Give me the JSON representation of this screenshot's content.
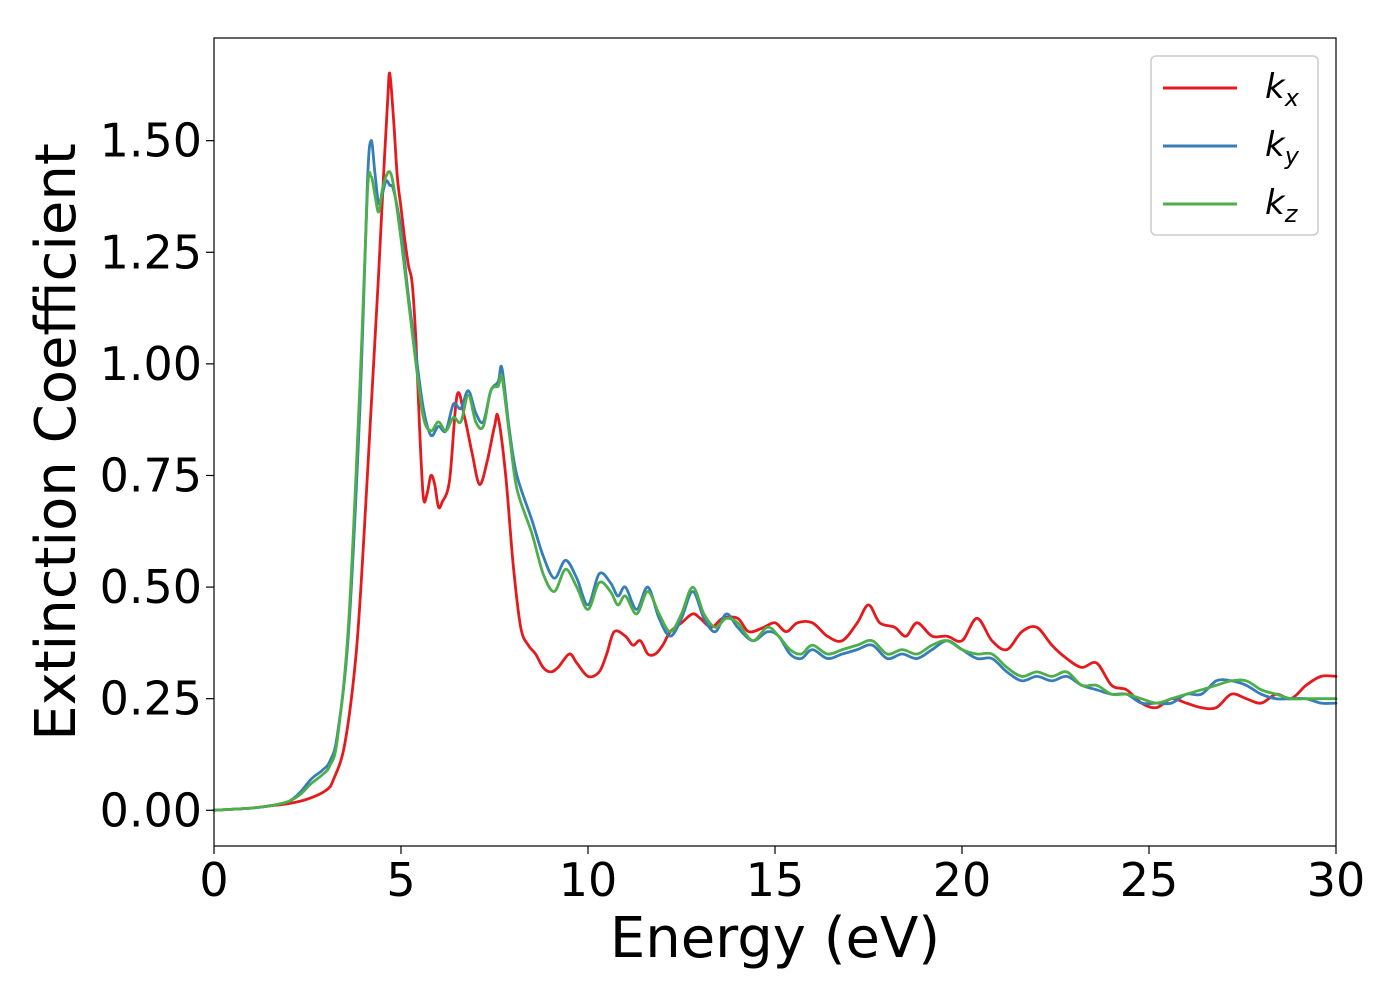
{
  "chart_data": {
    "type": "line",
    "title": "",
    "xlabel": "Energy (eV)",
    "ylabel": "Extinction Coefficient",
    "xlim": [
      0,
      30
    ],
    "ylim": [
      -0.08,
      1.73
    ],
    "xticks": [
      0,
      5,
      10,
      15,
      20,
      25,
      30
    ],
    "xtick_labels": [
      "0",
      "5",
      "10",
      "15",
      "20",
      "25",
      "30"
    ],
    "yticks": [
      0,
      0.25,
      0.5,
      0.75,
      1.0,
      1.25,
      1.5
    ],
    "ytick_labels": [
      "0.00",
      "0.25",
      "0.50",
      "0.75",
      "1.00",
      "1.25",
      "1.50"
    ],
    "grid": false,
    "legend_position": "top-right",
    "series": [
      {
        "name": "k",
        "subscript": "x",
        "color": "#e41a1c",
        "points": [
          [
            0,
            0
          ],
          [
            1,
            0.005
          ],
          [
            1.5,
            0.01
          ],
          [
            2,
            0.015
          ],
          [
            2.5,
            0.025
          ],
          [
            3,
            0.045
          ],
          [
            3.2,
            0.07
          ],
          [
            3.5,
            0.15
          ],
          [
            3.8,
            0.35
          ],
          [
            4.0,
            0.6
          ],
          [
            4.2,
            0.9
          ],
          [
            4.4,
            1.2
          ],
          [
            4.55,
            1.45
          ],
          [
            4.65,
            1.6
          ],
          [
            4.7,
            1.65
          ],
          [
            4.8,
            1.55
          ],
          [
            4.9,
            1.42
          ],
          [
            5.0,
            1.35
          ],
          [
            5.1,
            1.28
          ],
          [
            5.2,
            1.22
          ],
          [
            5.3,
            1.18
          ],
          [
            5.4,
            1.05
          ],
          [
            5.5,
            0.85
          ],
          [
            5.6,
            0.7
          ],
          [
            5.7,
            0.71
          ],
          [
            5.8,
            0.75
          ],
          [
            5.9,
            0.73
          ],
          [
            6.0,
            0.68
          ],
          [
            6.1,
            0.69
          ],
          [
            6.3,
            0.74
          ],
          [
            6.5,
            0.93
          ],
          [
            6.7,
            0.88
          ],
          [
            6.9,
            0.8
          ],
          [
            7.1,
            0.73
          ],
          [
            7.3,
            0.78
          ],
          [
            7.5,
            0.86
          ],
          [
            7.6,
            0.88
          ],
          [
            7.8,
            0.75
          ],
          [
            8.0,
            0.55
          ],
          [
            8.2,
            0.41
          ],
          [
            8.4,
            0.37
          ],
          [
            8.6,
            0.35
          ],
          [
            8.8,
            0.32
          ],
          [
            9.0,
            0.31
          ],
          [
            9.2,
            0.32
          ],
          [
            9.5,
            0.35
          ],
          [
            9.7,
            0.33
          ],
          [
            10.0,
            0.3
          ],
          [
            10.3,
            0.31
          ],
          [
            10.5,
            0.35
          ],
          [
            10.7,
            0.4
          ],
          [
            11.0,
            0.39
          ],
          [
            11.2,
            0.37
          ],
          [
            11.4,
            0.38
          ],
          [
            11.6,
            0.35
          ],
          [
            11.8,
            0.35
          ],
          [
            12.0,
            0.37
          ],
          [
            12.2,
            0.4
          ],
          [
            12.5,
            0.42
          ],
          [
            12.8,
            0.44
          ],
          [
            13.0,
            0.43
          ],
          [
            13.3,
            0.41
          ],
          [
            13.6,
            0.43
          ],
          [
            14.0,
            0.43
          ],
          [
            14.3,
            0.4
          ],
          [
            14.7,
            0.41
          ],
          [
            15.0,
            0.42
          ],
          [
            15.3,
            0.4
          ],
          [
            15.6,
            0.42
          ],
          [
            16.0,
            0.42
          ],
          [
            16.4,
            0.39
          ],
          [
            16.8,
            0.38
          ],
          [
            17.2,
            0.42
          ],
          [
            17.5,
            0.46
          ],
          [
            17.8,
            0.42
          ],
          [
            18.2,
            0.41
          ],
          [
            18.5,
            0.39
          ],
          [
            18.8,
            0.42
          ],
          [
            19.2,
            0.39
          ],
          [
            19.6,
            0.39
          ],
          [
            20.0,
            0.38
          ],
          [
            20.4,
            0.43
          ],
          [
            20.8,
            0.38
          ],
          [
            21.2,
            0.36
          ],
          [
            21.6,
            0.4
          ],
          [
            22.0,
            0.41
          ],
          [
            22.4,
            0.37
          ],
          [
            22.8,
            0.34
          ],
          [
            23.2,
            0.32
          ],
          [
            23.6,
            0.33
          ],
          [
            24.0,
            0.28
          ],
          [
            24.4,
            0.27
          ],
          [
            24.8,
            0.24
          ],
          [
            25.2,
            0.23
          ],
          [
            25.6,
            0.25
          ],
          [
            26.0,
            0.24
          ],
          [
            26.4,
            0.23
          ],
          [
            26.8,
            0.23
          ],
          [
            27.2,
            0.26
          ],
          [
            27.6,
            0.25
          ],
          [
            28.0,
            0.24
          ],
          [
            28.4,
            0.26
          ],
          [
            28.8,
            0.25
          ],
          [
            29.2,
            0.28
          ],
          [
            29.6,
            0.3
          ],
          [
            30.0,
            0.3
          ]
        ]
      },
      {
        "name": "k",
        "subscript": "y",
        "color": "#377eb8",
        "points": [
          [
            0,
            0
          ],
          [
            1,
            0.005
          ],
          [
            1.5,
            0.01
          ],
          [
            2,
            0.02
          ],
          [
            2.3,
            0.04
          ],
          [
            2.6,
            0.07
          ],
          [
            2.9,
            0.09
          ],
          [
            3.1,
            0.11
          ],
          [
            3.3,
            0.17
          ],
          [
            3.6,
            0.4
          ],
          [
            3.9,
            0.9
          ],
          [
            4.1,
            1.4
          ],
          [
            4.2,
            1.5
          ],
          [
            4.3,
            1.43
          ],
          [
            4.4,
            1.36
          ],
          [
            4.5,
            1.38
          ],
          [
            4.6,
            1.41
          ],
          [
            4.7,
            1.4
          ],
          [
            4.8,
            1.39
          ],
          [
            5.0,
            1.3
          ],
          [
            5.2,
            1.15
          ],
          [
            5.4,
            1.02
          ],
          [
            5.6,
            0.9
          ],
          [
            5.8,
            0.84
          ],
          [
            6.0,
            0.86
          ],
          [
            6.2,
            0.85
          ],
          [
            6.4,
            0.91
          ],
          [
            6.6,
            0.9
          ],
          [
            6.8,
            0.94
          ],
          [
            7.0,
            0.89
          ],
          [
            7.2,
            0.87
          ],
          [
            7.4,
            0.94
          ],
          [
            7.6,
            0.96
          ],
          [
            7.7,
            0.99
          ],
          [
            7.9,
            0.85
          ],
          [
            8.1,
            0.75
          ],
          [
            8.5,
            0.65
          ],
          [
            8.8,
            0.57
          ],
          [
            9.1,
            0.52
          ],
          [
            9.4,
            0.56
          ],
          [
            9.7,
            0.52
          ],
          [
            10.0,
            0.46
          ],
          [
            10.3,
            0.53
          ],
          [
            10.6,
            0.51
          ],
          [
            10.8,
            0.48
          ],
          [
            11.0,
            0.5
          ],
          [
            11.3,
            0.45
          ],
          [
            11.6,
            0.5
          ],
          [
            11.9,
            0.43
          ],
          [
            12.2,
            0.39
          ],
          [
            12.5,
            0.43
          ],
          [
            12.8,
            0.49
          ],
          [
            13.1,
            0.43
          ],
          [
            13.4,
            0.4
          ],
          [
            13.7,
            0.44
          ],
          [
            14.0,
            0.41
          ],
          [
            14.4,
            0.38
          ],
          [
            14.8,
            0.4
          ],
          [
            15.1,
            0.39
          ],
          [
            15.4,
            0.35
          ],
          [
            15.7,
            0.34
          ],
          [
            16.0,
            0.36
          ],
          [
            16.4,
            0.34
          ],
          [
            16.8,
            0.35
          ],
          [
            17.2,
            0.36
          ],
          [
            17.6,
            0.37
          ],
          [
            18.0,
            0.34
          ],
          [
            18.4,
            0.35
          ],
          [
            18.8,
            0.34
          ],
          [
            19.2,
            0.36
          ],
          [
            19.6,
            0.38
          ],
          [
            20.0,
            0.36
          ],
          [
            20.4,
            0.34
          ],
          [
            20.8,
            0.34
          ],
          [
            21.2,
            0.31
          ],
          [
            21.6,
            0.29
          ],
          [
            22.0,
            0.3
          ],
          [
            22.4,
            0.29
          ],
          [
            22.8,
            0.3
          ],
          [
            23.2,
            0.28
          ],
          [
            23.6,
            0.27
          ],
          [
            24.0,
            0.26
          ],
          [
            24.4,
            0.26
          ],
          [
            24.8,
            0.24
          ],
          [
            25.2,
            0.24
          ],
          [
            25.6,
            0.24
          ],
          [
            26.0,
            0.26
          ],
          [
            26.4,
            0.26
          ],
          [
            26.8,
            0.29
          ],
          [
            27.2,
            0.29
          ],
          [
            27.6,
            0.28
          ],
          [
            28.0,
            0.26
          ],
          [
            28.4,
            0.25
          ],
          [
            28.8,
            0.25
          ],
          [
            29.2,
            0.25
          ],
          [
            29.6,
            0.24
          ],
          [
            30.0,
            0.24
          ]
        ]
      },
      {
        "name": "k",
        "subscript": "z",
        "color": "#4daf4a",
        "points": [
          [
            0,
            0
          ],
          [
            1,
            0.005
          ],
          [
            1.5,
            0.01
          ],
          [
            2,
            0.02
          ],
          [
            2.3,
            0.035
          ],
          [
            2.6,
            0.06
          ],
          [
            2.9,
            0.08
          ],
          [
            3.1,
            0.1
          ],
          [
            3.3,
            0.16
          ],
          [
            3.6,
            0.42
          ],
          [
            3.9,
            0.95
          ],
          [
            4.1,
            1.38
          ],
          [
            4.2,
            1.42
          ],
          [
            4.3,
            1.38
          ],
          [
            4.4,
            1.34
          ],
          [
            4.5,
            1.39
          ],
          [
            4.6,
            1.42
          ],
          [
            4.7,
            1.43
          ],
          [
            4.8,
            1.4
          ],
          [
            5.0,
            1.28
          ],
          [
            5.2,
            1.14
          ],
          [
            5.4,
            1.0
          ],
          [
            5.6,
            0.88
          ],
          [
            5.8,
            0.85
          ],
          [
            6.0,
            0.87
          ],
          [
            6.2,
            0.85
          ],
          [
            6.4,
            0.88
          ],
          [
            6.6,
            0.87
          ],
          [
            6.8,
            0.93
          ],
          [
            7.0,
            0.87
          ],
          [
            7.2,
            0.86
          ],
          [
            7.4,
            0.94
          ],
          [
            7.6,
            0.95
          ],
          [
            7.7,
            0.97
          ],
          [
            7.9,
            0.84
          ],
          [
            8.1,
            0.72
          ],
          [
            8.5,
            0.62
          ],
          [
            8.8,
            0.53
          ],
          [
            9.1,
            0.49
          ],
          [
            9.4,
            0.54
          ],
          [
            9.7,
            0.5
          ],
          [
            10.0,
            0.45
          ],
          [
            10.3,
            0.51
          ],
          [
            10.6,
            0.49
          ],
          [
            10.8,
            0.46
          ],
          [
            11.0,
            0.48
          ],
          [
            11.3,
            0.44
          ],
          [
            11.6,
            0.49
          ],
          [
            11.9,
            0.44
          ],
          [
            12.2,
            0.4
          ],
          [
            12.5,
            0.44
          ],
          [
            12.8,
            0.5
          ],
          [
            13.1,
            0.44
          ],
          [
            13.4,
            0.41
          ],
          [
            13.7,
            0.43
          ],
          [
            14.0,
            0.42
          ],
          [
            14.4,
            0.38
          ],
          [
            14.8,
            0.41
          ],
          [
            15.1,
            0.39
          ],
          [
            15.4,
            0.36
          ],
          [
            15.7,
            0.35
          ],
          [
            16.0,
            0.37
          ],
          [
            16.4,
            0.35
          ],
          [
            16.8,
            0.36
          ],
          [
            17.2,
            0.37
          ],
          [
            17.6,
            0.38
          ],
          [
            18.0,
            0.35
          ],
          [
            18.4,
            0.36
          ],
          [
            18.8,
            0.35
          ],
          [
            19.2,
            0.37
          ],
          [
            19.6,
            0.38
          ],
          [
            20.0,
            0.36
          ],
          [
            20.4,
            0.35
          ],
          [
            20.8,
            0.35
          ],
          [
            21.2,
            0.32
          ],
          [
            21.6,
            0.3
          ],
          [
            22.0,
            0.31
          ],
          [
            22.4,
            0.3
          ],
          [
            22.8,
            0.31
          ],
          [
            23.2,
            0.28
          ],
          [
            23.6,
            0.28
          ],
          [
            24.0,
            0.26
          ],
          [
            24.4,
            0.26
          ],
          [
            24.8,
            0.25
          ],
          [
            25.2,
            0.24
          ],
          [
            25.6,
            0.25
          ],
          [
            26.0,
            0.26
          ],
          [
            26.4,
            0.27
          ],
          [
            26.8,
            0.28
          ],
          [
            27.2,
            0.29
          ],
          [
            27.6,
            0.29
          ],
          [
            28.0,
            0.27
          ],
          [
            28.4,
            0.26
          ],
          [
            28.8,
            0.25
          ],
          [
            29.2,
            0.25
          ],
          [
            29.6,
            0.25
          ],
          [
            30.0,
            0.25
          ]
        ]
      }
    ]
  }
}
